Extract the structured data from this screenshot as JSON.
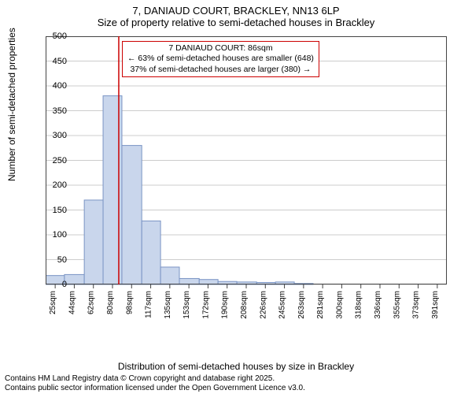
{
  "title": {
    "line1": "7, DANIAUD COURT, BRACKLEY, NN13 6LP",
    "line2": "Size of property relative to semi-detached houses in Brackley"
  },
  "y_axis_label": "Number of semi-detached properties",
  "x_axis_label": "Distribution of semi-detached houses by size in Brackley",
  "footer": {
    "line1": "Contains HM Land Registry data © Crown copyright and database right 2025.",
    "line2": "Contains public sector information licensed under the Open Government Licence v3.0."
  },
  "annotation": {
    "line1": "7 DANIAUD COURT: 86sqm",
    "line2": "← 63% of semi-detached houses are smaller (648)",
    "line3": "37% of semi-detached houses are larger (380) →"
  },
  "chart": {
    "type": "histogram",
    "background_color": "#ffffff",
    "plot_border_color": "#444444",
    "grid_color": "#cccccc",
    "bar_fill": "#c9d6ec",
    "bar_stroke": "#7a94c4",
    "marker_line_color": "#cc0000",
    "marker_line_width": 1.5,
    "marker_x_value": 86,
    "annotation_border": "#cc0000",
    "ylim": [
      0,
      500
    ],
    "yticks": [
      0,
      50,
      100,
      150,
      200,
      250,
      300,
      350,
      400,
      450,
      500
    ],
    "x_tick_labels": [
      "25sqm",
      "44sqm",
      "62sqm",
      "80sqm",
      "98sqm",
      "117sqm",
      "135sqm",
      "153sqm",
      "172sqm",
      "190sqm",
      "208sqm",
      "226sqm",
      "245sqm",
      "263sqm",
      "281sqm",
      "300sqm",
      "318sqm",
      "336sqm",
      "355sqm",
      "373sqm",
      "391sqm"
    ],
    "x_data_min": 16,
    "x_data_max": 400,
    "bars": [
      {
        "x0": 16,
        "x1": 34,
        "count": 18
      },
      {
        "x0": 34,
        "x1": 53,
        "count": 20
      },
      {
        "x0": 53,
        "x1": 71,
        "count": 170
      },
      {
        "x0": 71,
        "x1": 89,
        "count": 380
      },
      {
        "x0": 89,
        "x1": 108,
        "count": 280
      },
      {
        "x0": 108,
        "x1": 126,
        "count": 128
      },
      {
        "x0": 126,
        "x1": 144,
        "count": 35
      },
      {
        "x0": 144,
        "x1": 163,
        "count": 12
      },
      {
        "x0": 163,
        "x1": 181,
        "count": 10
      },
      {
        "x0": 181,
        "x1": 199,
        "count": 6
      },
      {
        "x0": 199,
        "x1": 218,
        "count": 5
      },
      {
        "x0": 218,
        "x1": 236,
        "count": 4
      },
      {
        "x0": 236,
        "x1": 254,
        "count": 5
      },
      {
        "x0": 254,
        "x1": 272,
        "count": 2
      },
      {
        "x0": 272,
        "x1": 291,
        "count": 0
      },
      {
        "x0": 291,
        "x1": 309,
        "count": 0
      },
      {
        "x0": 309,
        "x1": 327,
        "count": 0
      },
      {
        "x0": 327,
        "x1": 346,
        "count": 0
      },
      {
        "x0": 346,
        "x1": 364,
        "count": 0
      },
      {
        "x0": 364,
        "x1": 382,
        "count": 0
      },
      {
        "x0": 382,
        "x1": 400,
        "count": 0
      }
    ],
    "tick_fontsize": 11,
    "label_fontsize": 12,
    "title_fontsize": 13
  }
}
